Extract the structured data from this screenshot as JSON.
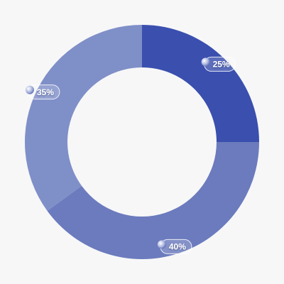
{
  "chart_data": {
    "type": "donut",
    "values": [
      25,
      40,
      35
    ],
    "value_labels": [
      "25%",
      "40%",
      "35%"
    ],
    "colors": [
      "#3a4fae",
      "#6b7bbd",
      "#7f8fc8"
    ]
  }
}
